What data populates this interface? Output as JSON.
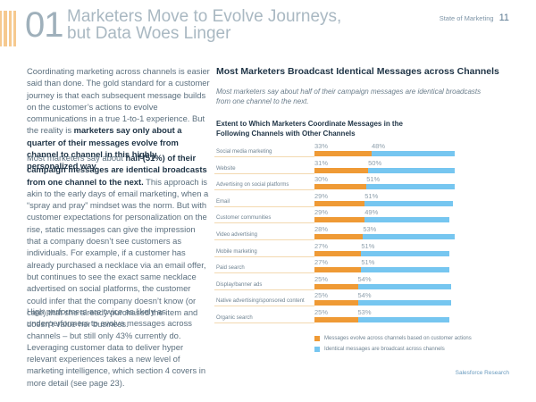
{
  "header": {
    "section_number": "01",
    "section_title_line1": "Marketers Move to Evolve Journeys,",
    "section_title_line2": "but Data Woes Linger",
    "publication": "State of Marketing",
    "page_number": "11"
  },
  "body": {
    "p1_a": "Coordinating marketing across channels is easier said than done. The gold standard for a customer journey is that each subsequent message builds on the customer’s actions to evolve communications in a true 1-to-1 experience. But the reality is ",
    "p1_b": "marketers say only about a quarter of their messages evolve from channel to channel in this highly personalized way.",
    "p2_a": "Most marketers say about ",
    "p2_b": "half (51%) of their campaign messages are identical broadcasts from one channel to the next.",
    "p2_c": " This approach is akin to the early days of email marketing, when a “spray and pray” mindset was the norm. But with customer expectations for personalization on the rise, static messages can give the impression that a company doesn’t see customers as individuals. For example, if a customer has already purchased a necklace via an email offer, but continues to see the exact same necklace advertised on social platforms, the customer could infer that the company doesn’t know (or care) that she already purchased the item and doesn’t value her business.",
    "p3": "High performers are twice as likely as underperformers to evolve messages across channels – but still only 43% currently do. Leveraging customer data to deliver hyper relevant experiences takes a new level of marketing intelligence, which section 4 covers in more detail (see page 23)."
  },
  "chart_section": {
    "title": "Most Marketers Broadcast Identical Messages across Channels",
    "subtitle": "Most marketers say about half of their campaign messages are identical broadcasts from one channel to the next."
  },
  "colors": {
    "evolve": "#ef9a35",
    "identical": "#76c6f0",
    "accent": "#f6c98f"
  },
  "chart_data": {
    "type": "bar",
    "stacked": true,
    "orientation": "horizontal",
    "title": "Extent to Which Marketers Coordinate Messages in the Following Channels with Other Channels",
    "categories": [
      "Social media marketing",
      "Website",
      "Advertising on social platforms",
      "Email",
      "Customer communities",
      "Video advertising",
      "Mobile marketing",
      "Paid search",
      "Display/banner ads",
      "Native advertising/sponsored content",
      "Organic search"
    ],
    "series": [
      {
        "name": "Messages evolve across channels based on customer actions",
        "values": [
          33,
          31,
          30,
          29,
          29,
          28,
          27,
          27,
          25,
          25,
          25
        ]
      },
      {
        "name": "Identical messages are broadcast across channels",
        "values": [
          48,
          50,
          51,
          51,
          49,
          53,
          51,
          51,
          54,
          54,
          53
        ]
      }
    ],
    "value_suffix": "%",
    "legend_position": "bottom",
    "grid": false
  },
  "footer": {
    "source": "Salesforce Research"
  }
}
